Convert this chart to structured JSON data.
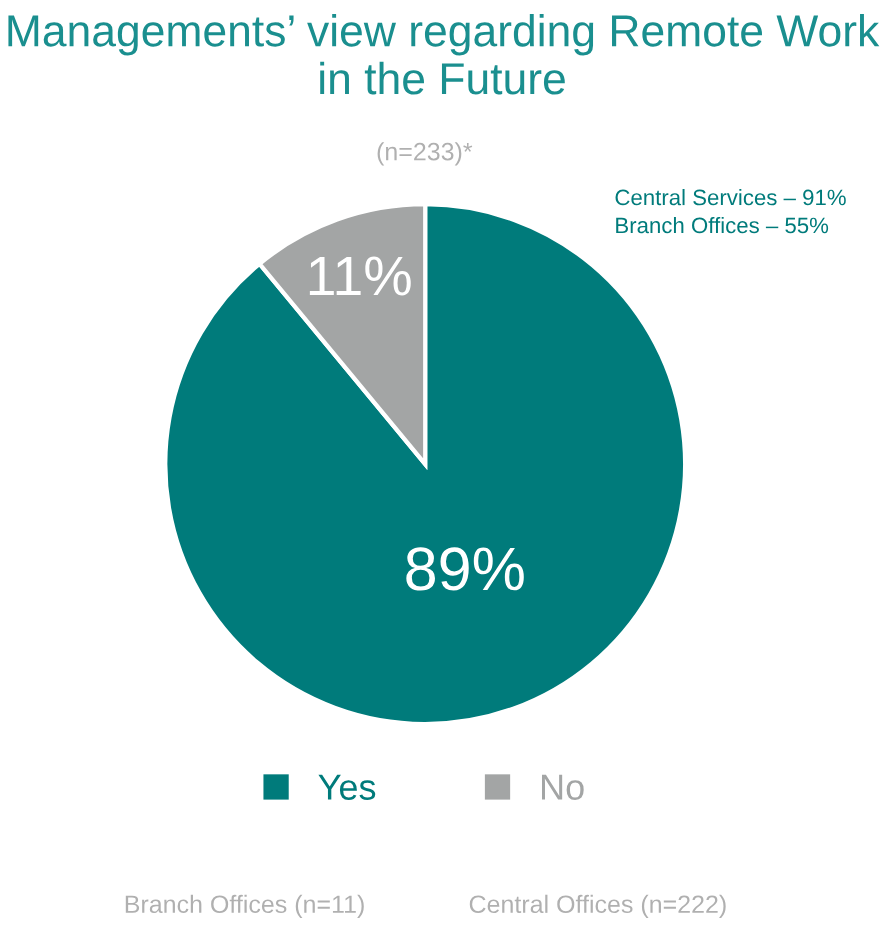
{
  "chart_data": {
    "type": "pie",
    "title": "Managements’ view regarding Remote Work in the Future",
    "subtitle": "(n=233)*",
    "categories": [
      "Yes",
      "No"
    ],
    "values": [
      89,
      11
    ],
    "colors": [
      "#007b7b",
      "#a3a5a5"
    ],
    "value_labels": [
      "89%",
      "11%"
    ],
    "legend": "bottom",
    "annotations": [
      "Central Services – 91%",
      "Branch Offices – 55%",
      "Branch Offices (n=11)",
      "Central Offices (n=222)"
    ]
  }
}
